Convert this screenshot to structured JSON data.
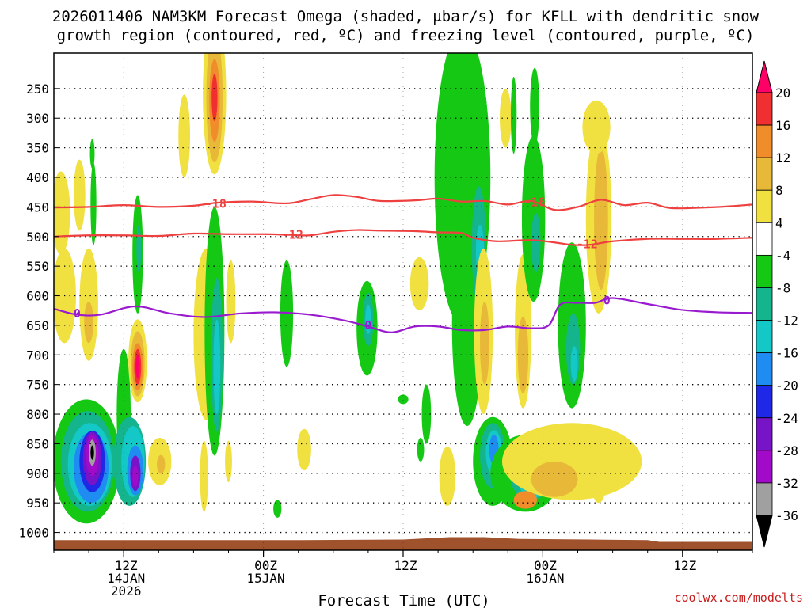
{
  "chart_data": {
    "type": "heatmap",
    "title_line1": "2026011406 NAM3KM Forecast Omega (shaded, μbar/s) for KFLL with dendritic snow",
    "title_line2": "growth region (contoured, red, ºC) and freezing level (contoured, purple, ºC)",
    "xlabel": "Forecast Time (UTC)",
    "ylabel": "",
    "credit": "coolwx.com/modelts",
    "x_range_hours": [
      0,
      60
    ],
    "y_range_mb": [
      190,
      1030
    ],
    "y_ticks": [
      250,
      300,
      350,
      400,
      450,
      500,
      550,
      600,
      650,
      700,
      750,
      800,
      850,
      900,
      950,
      1000
    ],
    "x_ticks": [
      {
        "hour": 6,
        "lines": [
          "12Z",
          "14JAN",
          "2026"
        ]
      },
      {
        "hour": 18,
        "lines": [
          "00Z",
          "15JAN"
        ]
      },
      {
        "hour": 30,
        "lines": [
          "12Z"
        ]
      },
      {
        "hour": 42,
        "lines": [
          "00Z",
          "16JAN"
        ]
      },
      {
        "hour": 54,
        "lines": [
          "12Z"
        ]
      }
    ],
    "colorbar": {
      "labels": [
        "20",
        "16",
        "12",
        "8",
        "4",
        "-4",
        "-8",
        "-12",
        "-16",
        "-20",
        "-24",
        "-28",
        "-32",
        "-36"
      ],
      "colors": [
        "#ff0066",
        "#f03030",
        "#f08c2a",
        "#e8b838",
        "#f0e040",
        "#ffffff",
        "#14c814",
        "#14b48c",
        "#14c8c8",
        "#1e8cf0",
        "#1e28e6",
        "#7814c8",
        "#a00ac8",
        "#a0a0a0",
        "#000000"
      ]
    },
    "omega_cells": [
      {
        "hour": 0.6,
        "p": 460,
        "rx": 0.8,
        "ry": 70,
        "v": 5
      },
      {
        "hour": 2.2,
        "p": 430,
        "rx": 0.5,
        "ry": 60,
        "v": 5
      },
      {
        "hour": 0.9,
        "p": 600,
        "rx": 1.0,
        "ry": 80,
        "v": 5
      },
      {
        "hour": 3.0,
        "p": 615,
        "rx": 0.8,
        "ry": 95,
        "v": 5
      },
      {
        "hour": 3.0,
        "p": 645,
        "rx": 0.4,
        "ry": 35,
        "v": 9
      },
      {
        "hour": 3.3,
        "p": 360,
        "rx": 0.2,
        "ry": 25,
        "v": -5
      },
      {
        "hour": 3.4,
        "p": 445,
        "rx": 0.25,
        "ry": 70,
        "v": -5
      },
      {
        "hour": 2.8,
        "p": 880,
        "rx": 2.9,
        "ry": 105,
        "v": -5
      },
      {
        "hour": 2.9,
        "p": 880,
        "rx": 2.3,
        "ry": 85,
        "v": -9
      },
      {
        "hour": 3.1,
        "p": 885,
        "rx": 1.9,
        "ry": 70,
        "v": -13
      },
      {
        "hour": 3.2,
        "p": 890,
        "rx": 1.5,
        "ry": 60,
        "v": -17
      },
      {
        "hour": 3.3,
        "p": 880,
        "rx": 1.1,
        "ry": 52,
        "v": -22
      },
      {
        "hour": 3.3,
        "p": 875,
        "rx": 0.8,
        "ry": 45,
        "v": -26
      },
      {
        "hour": 3.3,
        "p": 870,
        "rx": 0.55,
        "ry": 35,
        "v": -30
      },
      {
        "hour": 3.3,
        "p": 865,
        "rx": 0.3,
        "ry": 22,
        "v": -34
      },
      {
        "hour": 3.3,
        "p": 865,
        "rx": 0.15,
        "ry": 12,
        "v": -40
      },
      {
        "hour": 6.0,
        "p": 800,
        "rx": 0.6,
        "ry": 110,
        "v": -5
      },
      {
        "hour": 6.5,
        "p": 880,
        "rx": 1.4,
        "ry": 75,
        "v": -9
      },
      {
        "hour": 6.8,
        "p": 880,
        "rx": 1.0,
        "ry": 60,
        "v": -13
      },
      {
        "hour": 7.0,
        "p": 895,
        "rx": 0.7,
        "ry": 42,
        "v": -17
      },
      {
        "hour": 7.0,
        "p": 900,
        "rx": 0.45,
        "ry": 30,
        "v": -26
      },
      {
        "hour": 7.0,
        "p": 905,
        "rx": 0.25,
        "ry": 18,
        "v": -30
      },
      {
        "hour": 7.2,
        "p": 530,
        "rx": 0.45,
        "ry": 100,
        "v": -5
      },
      {
        "hour": 7.3,
        "p": 520,
        "rx": 0.2,
        "ry": 40,
        "v": -9
      },
      {
        "hour": 7.2,
        "p": 710,
        "rx": 0.8,
        "ry": 70,
        "v": 5
      },
      {
        "hour": 7.2,
        "p": 715,
        "rx": 0.6,
        "ry": 55,
        "v": 9
      },
      {
        "hour": 7.2,
        "p": 720,
        "rx": 0.45,
        "ry": 40,
        "v": 14
      },
      {
        "hour": 7.2,
        "p": 720,
        "rx": 0.3,
        "ry": 30,
        "v": 18
      },
      {
        "hour": 7.2,
        "p": 720,
        "rx": 0.18,
        "ry": 20,
        "v": 22
      },
      {
        "hour": 9.1,
        "p": 880,
        "rx": 1.0,
        "ry": 40,
        "v": 5
      },
      {
        "hour": 9.2,
        "p": 885,
        "rx": 0.35,
        "ry": 16,
        "v": 9
      },
      {
        "hour": 11.2,
        "p": 330,
        "rx": 0.5,
        "ry": 70,
        "v": 5
      },
      {
        "hour": 13.8,
        "p": 260,
        "rx": 1.0,
        "ry": 135,
        "v": 5
      },
      {
        "hour": 13.8,
        "p": 265,
        "rx": 0.7,
        "ry": 110,
        "v": 9
      },
      {
        "hour": 13.8,
        "p": 270,
        "rx": 0.45,
        "ry": 70,
        "v": 14
      },
      {
        "hour": 13.8,
        "p": 265,
        "rx": 0.25,
        "ry": 40,
        "v": 18
      },
      {
        "hour": 13.1,
        "p": 665,
        "rx": 1.1,
        "ry": 145,
        "v": 5
      },
      {
        "hour": 13.8,
        "p": 660,
        "rx": 0.85,
        "ry": 210,
        "v": -5
      },
      {
        "hour": 14.0,
        "p": 700,
        "rx": 0.5,
        "ry": 130,
        "v": -9
      },
      {
        "hour": 14.0,
        "p": 720,
        "rx": 0.3,
        "ry": 80,
        "v": -13
      },
      {
        "hour": 15.2,
        "p": 610,
        "rx": 0.4,
        "ry": 70,
        "v": 5
      },
      {
        "hour": 15.0,
        "p": 880,
        "rx": 0.3,
        "ry": 35,
        "v": 5
      },
      {
        "hour": 12.9,
        "p": 905,
        "rx": 0.35,
        "ry": 60,
        "v": 5
      },
      {
        "hour": 20.0,
        "p": 630,
        "rx": 0.55,
        "ry": 90,
        "v": -5
      },
      {
        "hour": 21.5,
        "p": 860,
        "rx": 0.6,
        "ry": 35,
        "v": 5
      },
      {
        "hour": 19.2,
        "p": 960,
        "rx": 0.35,
        "ry": 15,
        "v": -5
      },
      {
        "hour": 26.9,
        "p": 655,
        "rx": 0.9,
        "ry": 80,
        "v": -5
      },
      {
        "hour": 27.0,
        "p": 640,
        "rx": 0.45,
        "ry": 45,
        "v": -9
      },
      {
        "hour": 27.0,
        "p": 640,
        "rx": 0.25,
        "ry": 25,
        "v": -13
      },
      {
        "hour": 30.0,
        "p": 775,
        "rx": 0.45,
        "ry": 8,
        "v": -5
      },
      {
        "hour": 32.0,
        "p": 800,
        "rx": 0.4,
        "ry": 50,
        "v": -5
      },
      {
        "hour": 31.5,
        "p": 860,
        "rx": 0.3,
        "ry": 20,
        "v": -5
      },
      {
        "hour": 31.4,
        "p": 580,
        "rx": 0.8,
        "ry": 45,
        "v": 5
      },
      {
        "hour": 35.1,
        "p": 400,
        "rx": 2.4,
        "ry": 250,
        "v": -5
      },
      {
        "hour": 35.5,
        "p": 650,
        "rx": 1.3,
        "ry": 170,
        "v": -5
      },
      {
        "hour": 33.8,
        "p": 905,
        "rx": 0.7,
        "ry": 50,
        "v": 5
      },
      {
        "hour": 36.6,
        "p": 290,
        "rx": 0.6,
        "ry": 50,
        "v": -5
      },
      {
        "hour": 36.5,
        "p": 515,
        "rx": 0.6,
        "ry": 100,
        "v": -9
      },
      {
        "hour": 36.6,
        "p": 525,
        "rx": 0.35,
        "ry": 45,
        "v": -13
      },
      {
        "hour": 36.9,
        "p": 660,
        "rx": 0.8,
        "ry": 140,
        "v": 5
      },
      {
        "hour": 37.0,
        "p": 680,
        "rx": 0.4,
        "ry": 70,
        "v": 9
      },
      {
        "hour": 37.7,
        "p": 880,
        "rx": 1.7,
        "ry": 75,
        "v": -5
      },
      {
        "hour": 37.7,
        "p": 870,
        "rx": 1.1,
        "ry": 55,
        "v": -9
      },
      {
        "hour": 37.8,
        "p": 865,
        "rx": 0.7,
        "ry": 38,
        "v": -13
      },
      {
        "hour": 37.8,
        "p": 860,
        "rx": 0.4,
        "ry": 25,
        "v": -17
      },
      {
        "hour": 38.8,
        "p": 300,
        "rx": 0.5,
        "ry": 50,
        "v": 5
      },
      {
        "hour": 39.5,
        "p": 295,
        "rx": 0.25,
        "ry": 65,
        "v": -5
      },
      {
        "hour": 40.3,
        "p": 660,
        "rx": 0.7,
        "ry": 130,
        "v": 5
      },
      {
        "hour": 40.3,
        "p": 700,
        "rx": 0.45,
        "ry": 65,
        "v": 9
      },
      {
        "hour": 41.3,
        "p": 280,
        "rx": 0.4,
        "ry": 65,
        "v": -5
      },
      {
        "hour": 41.2,
        "p": 470,
        "rx": 1.0,
        "ry": 140,
        "v": -5
      },
      {
        "hour": 41.4,
        "p": 510,
        "rx": 0.4,
        "ry": 50,
        "v": -9
      },
      {
        "hour": 40.5,
        "p": 900,
        "rx": 3.0,
        "ry": 65,
        "v": -5
      },
      {
        "hour": 41.0,
        "p": 905,
        "rx": 1.8,
        "ry": 40,
        "v": -9
      },
      {
        "hour": 41.0,
        "p": 915,
        "rx": 1.0,
        "ry": 30,
        "v": -13
      },
      {
        "hour": 44.5,
        "p": 880,
        "rx": 6.0,
        "ry": 65,
        "v": 5
      },
      {
        "hour": 43.0,
        "p": 910,
        "rx": 2.0,
        "ry": 30,
        "v": 9
      },
      {
        "hour": 40.5,
        "p": 945,
        "rx": 1.0,
        "ry": 15,
        "v": 14
      },
      {
        "hour": 44.5,
        "p": 650,
        "rx": 1.2,
        "ry": 140,
        "v": -5
      },
      {
        "hour": 44.6,
        "p": 690,
        "rx": 0.6,
        "ry": 60,
        "v": -9
      },
      {
        "hour": 44.7,
        "p": 715,
        "rx": 0.3,
        "ry": 30,
        "v": -13
      },
      {
        "hour": 46.8,
        "p": 470,
        "rx": 1.1,
        "ry": 160,
        "v": 5
      },
      {
        "hour": 47.0,
        "p": 470,
        "rx": 0.6,
        "ry": 120,
        "v": 9
      },
      {
        "hour": 46.6,
        "p": 315,
        "rx": 1.2,
        "ry": 45,
        "v": 5
      },
      {
        "hour": 46.8,
        "p": 920,
        "rx": 0.6,
        "ry": 30,
        "v": 5
      }
    ],
    "contours": [
      {
        "name": "dgz-minus18",
        "label": "-18",
        "color": "#ef4040",
        "label_hour": 13.9,
        "label_p": 445,
        "points": [
          [
            0,
            451
          ],
          [
            3,
            450
          ],
          [
            6,
            447
          ],
          [
            9,
            450
          ],
          [
            12,
            448
          ],
          [
            14,
            443
          ],
          [
            17,
            441
          ],
          [
            20,
            444
          ],
          [
            22,
            437
          ],
          [
            24,
            430
          ],
          [
            26,
            433
          ],
          [
            28,
            440
          ],
          [
            31,
            439
          ],
          [
            33,
            436
          ],
          [
            35,
            441
          ],
          [
            37,
            440
          ],
          [
            39,
            446
          ],
          [
            41,
            440
          ],
          [
            43,
            455
          ],
          [
            45,
            450
          ],
          [
            47,
            438
          ],
          [
            49,
            447
          ],
          [
            51,
            443
          ],
          [
            53,
            452
          ],
          [
            56,
            451
          ],
          [
            58,
            449
          ],
          [
            60,
            446
          ]
        ]
      },
      {
        "name": "dgz-minus12",
        "label": "-12",
        "color": "#ef4040",
        "label_hour": 20.5,
        "label_p": 497,
        "points": [
          [
            0,
            500
          ],
          [
            3,
            498
          ],
          [
            6,
            498
          ],
          [
            9,
            499
          ],
          [
            12,
            495
          ],
          [
            15,
            496
          ],
          [
            18,
            496
          ],
          [
            20,
            497
          ],
          [
            22,
            498
          ],
          [
            24,
            492
          ],
          [
            26,
            489
          ],
          [
            28,
            490
          ],
          [
            31,
            491
          ],
          [
            33,
            493
          ],
          [
            35,
            494
          ],
          [
            36,
            502
          ],
          [
            38,
            508
          ],
          [
            41,
            506
          ],
          [
            43,
            510
          ],
          [
            44.5,
            514
          ],
          [
            46,
            514
          ],
          [
            48,
            508
          ],
          [
            51,
            504
          ],
          [
            54,
            504
          ],
          [
            57,
            504
          ],
          [
            60,
            502
          ]
        ]
      },
      {
        "name": "freezing-level",
        "label": "0",
        "color": "#9a1ad0",
        "label_hour": 27.0,
        "label_p": 650,
        "points": [
          [
            0,
            622
          ],
          [
            2,
            632
          ],
          [
            4,
            632
          ],
          [
            7,
            618
          ],
          [
            10,
            630
          ],
          [
            13,
            636
          ],
          [
            16,
            630
          ],
          [
            19,
            628
          ],
          [
            22,
            632
          ],
          [
            25,
            642
          ],
          [
            27,
            652
          ],
          [
            29,
            662
          ],
          [
            31,
            652
          ],
          [
            33,
            652
          ],
          [
            35,
            658
          ],
          [
            37,
            658
          ],
          [
            39,
            652
          ],
          [
            41,
            655
          ],
          [
            42.5,
            650
          ],
          [
            43.5,
            615
          ],
          [
            45,
            612
          ],
          [
            46.5,
            612
          ],
          [
            48,
            604
          ],
          [
            51,
            614
          ],
          [
            54,
            624
          ],
          [
            57,
            628
          ],
          [
            60,
            629
          ]
        ]
      }
    ],
    "contour_labels_extra": [
      {
        "name": "dgz-minus18-label-2",
        "label": "-18",
        "color": "#ef4040",
        "hour": 41.3,
        "p": 442
      },
      {
        "name": "dgz-minus12-label-2",
        "label": "-12",
        "color": "#ef4040",
        "hour": 45.8,
        "p": 513
      },
      {
        "name": "freezing-level-label-left",
        "label": "0",
        "color": "#9a1ad0",
        "hour": 2.0,
        "p": 630
      },
      {
        "name": "freezing-level-label-right",
        "label": "0",
        "color": "#9a1ad0",
        "hour": 47.5,
        "p": 608
      }
    ],
    "terrain": {
      "color": "#a0522d",
      "top_profile": [
        [
          0,
          1013
        ],
        [
          10,
          1013
        ],
        [
          20,
          1013
        ],
        [
          30,
          1012
        ],
        [
          34,
          1008
        ],
        [
          37,
          1008
        ],
        [
          40,
          1011
        ],
        [
          46,
          1012
        ],
        [
          51,
          1013
        ],
        [
          52,
          1016
        ],
        [
          60,
          1016
        ]
      ],
      "base_p": 1030
    }
  }
}
